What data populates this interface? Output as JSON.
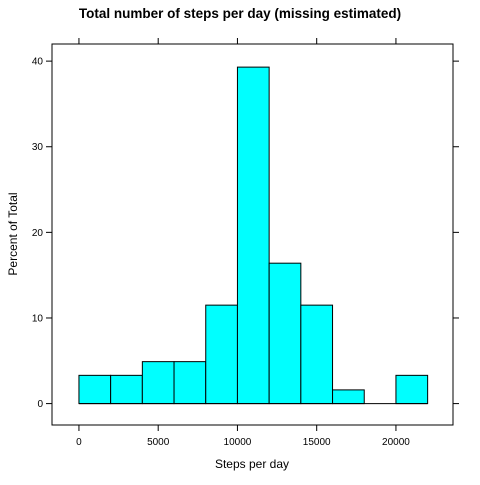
{
  "chart_data": {
    "type": "bar",
    "title": "Total number of steps per day (missing estimated)",
    "xlabel": "Steps per day",
    "ylabel": "Percent of Total",
    "bin_edges": [
      0,
      2000,
      4000,
      6000,
      8000,
      10000,
      12000,
      14000,
      16000,
      18000,
      20000,
      22000
    ],
    "values": [
      3.3,
      3.3,
      4.9,
      4.9,
      11.5,
      39.3,
      16.4,
      11.5,
      1.6,
      0,
      3.3
    ],
    "xticks": [
      0,
      5000,
      10000,
      15000,
      20000
    ],
    "yticks": [
      0,
      10,
      20,
      30,
      40
    ],
    "xlim": [
      -1700,
      23600
    ],
    "ylim": [
      -2.5,
      42
    ],
    "fill_color": "#00ffff",
    "stroke_color": "#000000"
  }
}
